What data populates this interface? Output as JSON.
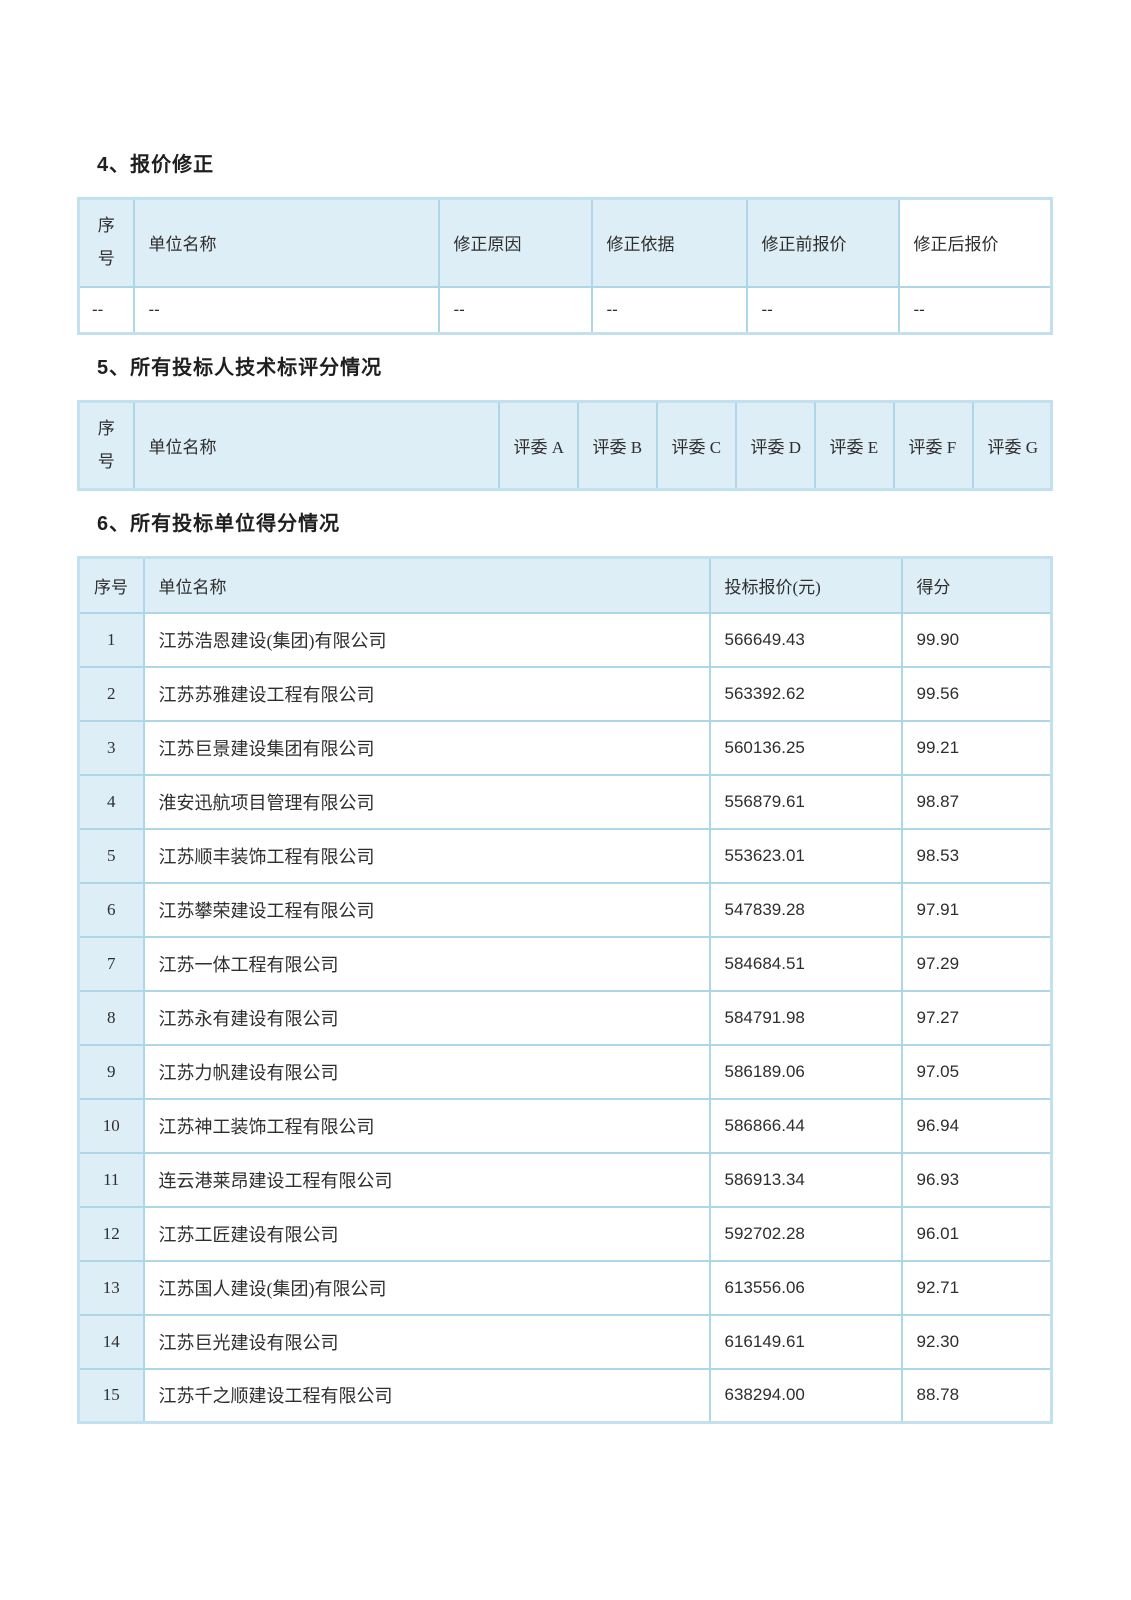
{
  "appearance": {
    "header_bg": "#ddeef6",
    "border_color": "#aed6e9",
    "frame_color": "#c3e0ef",
    "page_bg": "#ffffff",
    "title_color": "#1f1f1f"
  },
  "sections": [
    {
      "title": "4、报价修正",
      "table": {
        "headers": [
          "序号",
          "单位名称",
          "修正原因",
          "修正依据",
          "修正前报价",
          "修正后报价"
        ],
        "rows": [
          [
            "--",
            "--",
            "--",
            "--",
            "--",
            "--"
          ]
        ]
      }
    },
    {
      "title": "5、所有投标人技术标评分情况",
      "table": {
        "headers": [
          "序号",
          "单位名称",
          "评委 A",
          "评委 B",
          "评委 C",
          "评委 D",
          "评委 E",
          "评委 F",
          "评委 G"
        ],
        "rows": []
      }
    },
    {
      "title": "6、所有投标单位得分情况",
      "table": {
        "headers": [
          "序号",
          "单位名称",
          "投标报价(元)",
          "得分"
        ],
        "rows": [
          [
            "1",
            "江苏浩恩建设(集团)有限公司",
            "566649.43",
            "99.90"
          ],
          [
            "2",
            "江苏苏雅建设工程有限公司",
            "563392.62",
            "99.56"
          ],
          [
            "3",
            "江苏巨景建设集团有限公司",
            "560136.25",
            "99.21"
          ],
          [
            "4",
            "淮安迅航项目管理有限公司",
            "556879.61",
            "98.87"
          ],
          [
            "5",
            "江苏顺丰装饰工程有限公司",
            "553623.01",
            "98.53"
          ],
          [
            "6",
            "江苏攀荣建设工程有限公司",
            "547839.28",
            "97.91"
          ],
          [
            "7",
            "江苏一体工程有限公司",
            "584684.51",
            "97.29"
          ],
          [
            "8",
            "江苏永有建设有限公司",
            "584791.98",
            "97.27"
          ],
          [
            "9",
            "江苏力帆建设有限公司",
            "586189.06",
            "97.05"
          ],
          [
            "10",
            "江苏神工装饰工程有限公司",
            "586866.44",
            "96.94"
          ],
          [
            "11",
            "连云港莱昂建设工程有限公司",
            "586913.34",
            "96.93"
          ],
          [
            "12",
            "江苏工匠建设有限公司",
            "592702.28",
            "96.01"
          ],
          [
            "13",
            "江苏国人建设(集团)有限公司",
            "613556.06",
            "92.71"
          ],
          [
            "14",
            "江苏巨光建设有限公司",
            "616149.61",
            "92.30"
          ],
          [
            "15",
            "江苏千之顺建设工程有限公司",
            "638294.00",
            "88.78"
          ]
        ]
      }
    }
  ]
}
